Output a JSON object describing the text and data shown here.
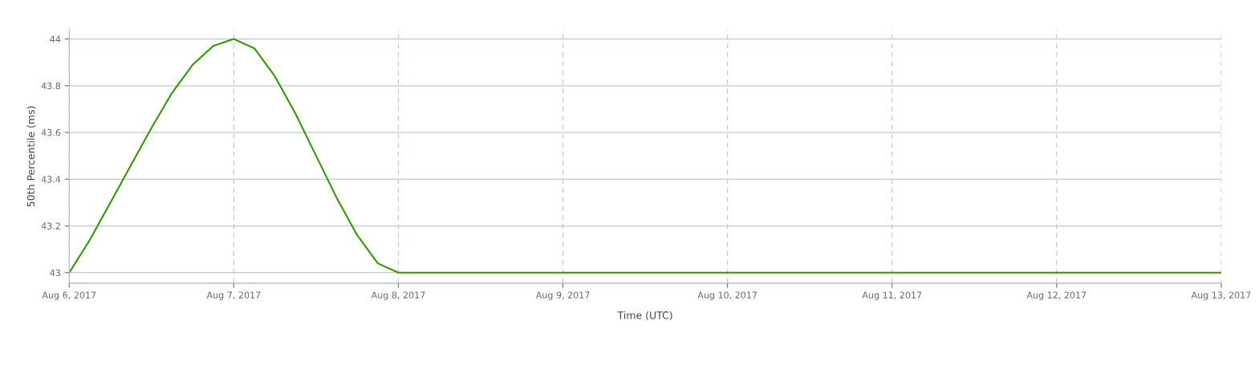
{
  "chart_data": {
    "type": "line",
    "xlabel": "Time (UTC)",
    "ylabel": "50th Percentile (ms)",
    "x": [
      "2017-08-06T00:00",
      "2017-08-06T03:00",
      "2017-08-06T06:00",
      "2017-08-06T09:00",
      "2017-08-06T12:00",
      "2017-08-06T15:00",
      "2017-08-06T18:00",
      "2017-08-06T21:00",
      "2017-08-07T00:00",
      "2017-08-07T03:00",
      "2017-08-07T06:00",
      "2017-08-07T09:00",
      "2017-08-07T12:00",
      "2017-08-07T15:00",
      "2017-08-07T18:00",
      "2017-08-07T21:00",
      "2017-08-08T00:00",
      "2017-08-09T00:00",
      "2017-08-10T00:00",
      "2017-08-11T00:00",
      "2017-08-12T00:00",
      "2017-08-13T00:00"
    ],
    "series": [
      {
        "color": "#339900",
        "values": [
          43,
          43.14,
          43.3,
          43.46,
          43.62,
          43.77,
          43.89,
          43.97,
          44,
          43.96,
          43.84,
          43.68,
          43.5,
          43.32,
          43.16,
          43.04,
          43,
          43,
          43,
          43,
          43,
          43
        ]
      }
    ],
    "xlim": [
      "2017-08-06",
      "2017-08-13"
    ],
    "xticks": [
      {
        "value": "2017-08-06",
        "label": "Aug 6, 2017"
      },
      {
        "value": "2017-08-07",
        "label": "Aug 7, 2017"
      },
      {
        "value": "2017-08-08",
        "label": "Aug 8, 2017"
      },
      {
        "value": "2017-08-09",
        "label": "Aug 9, 2017"
      },
      {
        "value": "2017-08-10",
        "label": "Aug 10, 2017"
      },
      {
        "value": "2017-08-11",
        "label": "Aug 11, 2017"
      },
      {
        "value": "2017-08-12",
        "label": "Aug 12, 2017"
      },
      {
        "value": "2017-08-13",
        "label": "Aug 13, 2017"
      }
    ],
    "ylim": [
      42.955,
      44.04
    ],
    "yticks": [
      43,
      43.2,
      43.4,
      43.6,
      43.8,
      44
    ],
    "grid": true,
    "marker": "none",
    "line_style": "solid"
  }
}
